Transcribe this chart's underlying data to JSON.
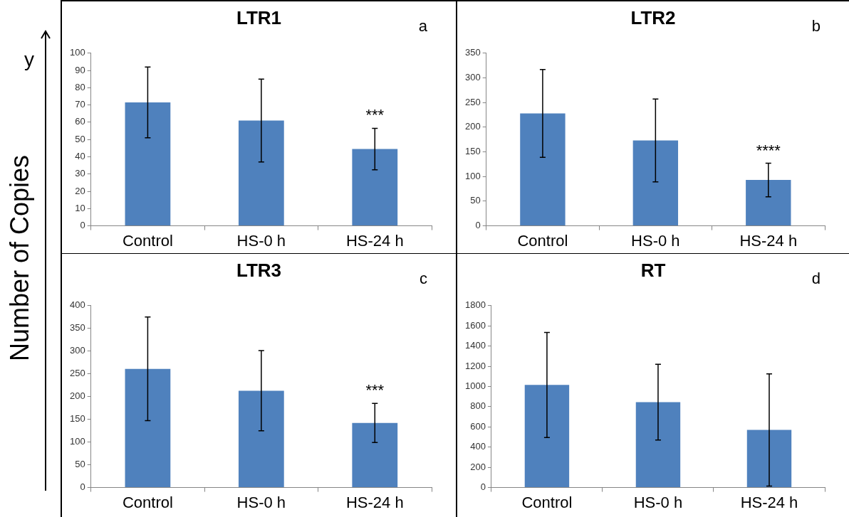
{
  "chart_data": [
    {
      "type": "bar",
      "title": "LTR1",
      "ylabel": "Number of Copies",
      "categories": [
        "Control",
        "HS-0 h",
        "HS-24 h"
      ],
      "values": [
        71.5,
        61,
        44.5
      ],
      "errors": [
        20.5,
        24,
        12
      ],
      "color": "#4f81bd",
      "ylim": [
        0,
        100
      ],
      "yticks": [
        0,
        10,
        20,
        30,
        40,
        50,
        60,
        70,
        80,
        90,
        100
      ],
      "annotations": [
        "a",
        "***",
        "y"
      ]
    },
    {
      "type": "bar",
      "title": "LTR2",
      "categories": [
        "Control",
        "HS-0 h",
        "HS-24 h"
      ],
      "values": [
        228,
        173,
        93
      ],
      "errors": [
        89,
        84,
        34
      ],
      "color": "#4f81bd",
      "ylim": [
        0,
        350
      ],
      "yticks": [
        0,
        50,
        100,
        150,
        200,
        250,
        300,
        350
      ],
      "annotations": [
        "b",
        "****"
      ]
    },
    {
      "type": "bar",
      "title": "LTR3",
      "categories": [
        "Control",
        "HS-0 h",
        "HS-24 h"
      ],
      "values": [
        261,
        213,
        142
      ],
      "errors": [
        114,
        88,
        43
      ],
      "color": "#4f81bd",
      "ylim": [
        0,
        400
      ],
      "yticks": [
        0,
        50,
        100,
        150,
        200,
        250,
        300,
        350,
        400
      ],
      "annotations": [
        "c",
        "***"
      ]
    },
    {
      "type": "bar",
      "title": "RT",
      "categories": [
        "Control",
        "HS-0 h",
        "HS-24 h"
      ],
      "values": [
        1015,
        845,
        570
      ],
      "errors": [
        520,
        375,
        555
      ],
      "color": "#4f81bd",
      "ylim": [
        0,
        1800
      ],
      "yticks": [
        0,
        200,
        400,
        600,
        800,
        1000,
        1200,
        1400,
        1600,
        1800
      ],
      "annotations": [
        "d"
      ]
    }
  ]
}
